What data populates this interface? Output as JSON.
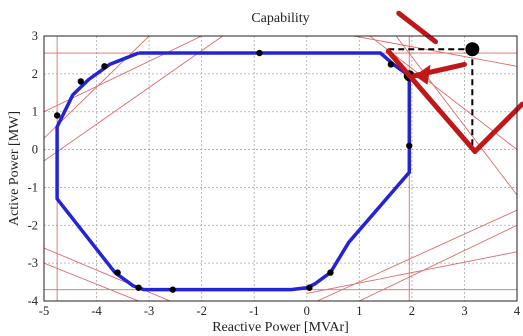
{
  "chart_data": {
    "type": "line",
    "title": "Capability",
    "xlabel": "Reactive Power [MVAr]",
    "ylabel": "Active Power [MW]",
    "xlim": [
      -5,
      4
    ],
    "ylim": [
      -4,
      3
    ],
    "xticks": [
      -5,
      -4,
      -3,
      -2,
      -1,
      0,
      1,
      2,
      3,
      4
    ],
    "yticks": [
      -4,
      -3,
      -2,
      -1,
      0,
      1,
      2,
      3
    ],
    "grid": true,
    "colors": {
      "capability_curve": "#2323d8",
      "constraint_lines": "#e06a6a",
      "marker": "#000000",
      "arrow": "#c0171b",
      "guide": "#000000"
    },
    "series": [
      {
        "values": [
          [
            -3.2,
            2.55
          ],
          [
            1.4,
            2.55
          ],
          [
            1.65,
            2.25
          ],
          [
            1.95,
            1.95
          ],
          [
            1.95,
            -0.6
          ],
          [
            0.8,
            -2.45
          ],
          [
            0.45,
            -3.25
          ],
          [
            0.15,
            -3.55
          ],
          [
            0.0,
            -3.65
          ],
          [
            -0.3,
            -3.7
          ],
          [
            -3.1,
            -3.7
          ],
          [
            -3.3,
            -3.6
          ],
          [
            -3.65,
            -3.25
          ],
          [
            -4.75,
            -1.3
          ],
          [
            -4.75,
            0.6
          ],
          [
            -4.45,
            1.45
          ],
          [
            -4.15,
            1.85
          ],
          [
            -3.75,
            2.25
          ],
          [
            -3.2,
            2.55
          ]
        ]
      }
    ],
    "markers": [
      [
        -0.9,
        2.55
      ],
      [
        1.6,
        2.25
      ],
      [
        1.95,
        1.95
      ],
      [
        1.95,
        0.1
      ],
      [
        0.45,
        -3.25
      ],
      [
        0.05,
        -3.65
      ],
      [
        -2.55,
        -3.7
      ],
      [
        -3.2,
        -3.65
      ],
      [
        -3.6,
        -3.25
      ],
      [
        -4.75,
        0.9
      ],
      [
        -4.3,
        1.8
      ],
      [
        -3.85,
        2.2
      ]
    ],
    "highlight_point": [
      3.15,
      2.65
    ],
    "constraint_lines": [
      [
        [
          -5,
          2.55
        ],
        [
          4,
          2.55
        ]
      ],
      [
        [
          -5,
          -3.7
        ],
        [
          4,
          -3.7
        ]
      ],
      [
        [
          -4.75,
          -4
        ],
        [
          -4.75,
          3
        ]
      ],
      [
        [
          1.95,
          -4
        ],
        [
          1.95,
          3
        ]
      ],
      [
        [
          -5,
          1.0
        ],
        [
          -2.0,
          3.0
        ]
      ],
      [
        [
          -5,
          0.3
        ],
        [
          -3.0,
          3.0
        ]
      ],
      [
        [
          -5,
          -0.3
        ],
        [
          -1.6,
          3.0
        ]
      ],
      [
        [
          -5,
          -2.6
        ],
        [
          -2.6,
          -4.0
        ]
      ],
      [
        [
          -5,
          -3.0
        ],
        [
          -3.2,
          -4.0
        ]
      ],
      [
        [
          0.9,
          3.0
        ],
        [
          4,
          2.2
        ]
      ],
      [
        [
          1.2,
          3.0
        ],
        [
          4,
          0.0
        ]
      ],
      [
        [
          1.7,
          3.0
        ],
        [
          4,
          -1.2
        ]
      ],
      [
        [
          0.2,
          -4.0
        ],
        [
          4,
          -1.6
        ]
      ],
      [
        [
          0.0,
          -3.8
        ],
        [
          4,
          -2.7
        ]
      ],
      [
        [
          1.0,
          -4.0
        ],
        [
          4,
          -2.0
        ]
      ]
    ],
    "guide_lines": [
      [
        [
          1.55,
          2.65
        ],
        [
          3.15,
          2.65
        ]
      ],
      [
        [
          3.15,
          2.65
        ],
        [
          3.15,
          0.0
        ]
      ]
    ],
    "annotation_arrows": [
      {
        "from": [
          3.0,
          2.25
        ],
        "to": [
          2.05,
          1.95
        ]
      },
      {
        "from": [
          1.55,
          2.6
        ],
        "to": [
          3.2,
          -0.05
        ]
      },
      {
        "from": [
          3.2,
          -0.05
        ],
        "to": [
          4.1,
          1.2
        ]
      },
      {
        "from": [
          1.75,
          3.6
        ],
        "to": [
          2.45,
          2.85
        ]
      }
    ]
  }
}
